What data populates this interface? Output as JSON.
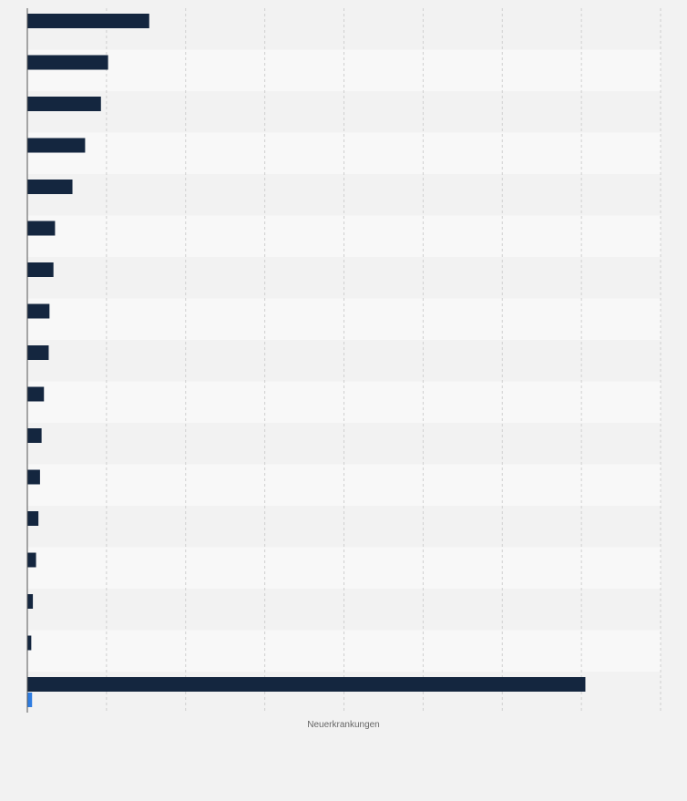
{
  "chart_data": {
    "type": "bar",
    "orientation": "horizontal",
    "title": "",
    "xlabel": "Neuerkrankungen",
    "ylabel": "",
    "categories": [
      "",
      "",
      "",
      "",
      "",
      "",
      "",
      "",
      "",
      "",
      "",
      "",
      "",
      "",
      "",
      "",
      ""
    ],
    "series": [
      {
        "values": [
          15400,
          10200,
          9300,
          7300,
          5700,
          3500,
          3300,
          2800,
          2700,
          2100,
          1800,
          1600,
          1400,
          1100,
          700,
          500,
          70500
        ]
      },
      {
        "values": [
          0,
          0,
          0,
          0,
          0,
          0,
          0,
          0,
          0,
          0,
          0,
          0,
          0,
          0,
          0,
          0,
          600
        ]
      }
    ],
    "xlim": [
      0,
      80000
    ],
    "x_grid_step": 10000,
    "grid": true,
    "colors": {
      "series_1": "#14263f",
      "series_2": "#2f7de1",
      "band_light": "#f8f8f8",
      "band_dark": "#f2f2f2",
      "gridline": "#cfcfcf",
      "axis": "#555555"
    }
  }
}
